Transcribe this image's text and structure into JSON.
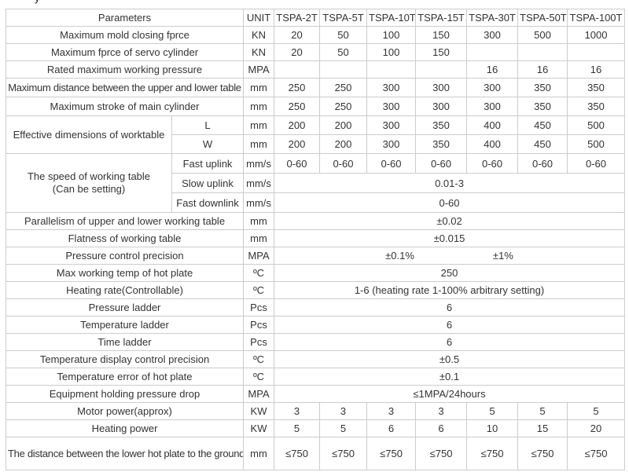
{
  "page": {
    "top_fragment_text": "y"
  },
  "colors": {
    "border": "#cccccc",
    "text": "#333333",
    "background": "#ffffff"
  },
  "table": {
    "header": [
      "Parameters",
      "UNIT",
      "TSPA-2T",
      "TSPA-5T",
      "TSPA-10T",
      "TSPA-15T",
      "TSPA-30T",
      "TSPA-50T",
      "TSPA-100T"
    ],
    "rows": {
      "mold_closing": {
        "label": "Maximum mold closing fprce",
        "unit": "KN",
        "values": [
          "20",
          "50",
          "100",
          "150",
          "300",
          "500",
          "1000"
        ]
      },
      "servo_cylinder": {
        "label": "Maximum fprce of servo cylinder",
        "unit": "KN",
        "values": [
          "20",
          "50",
          "100",
          "150",
          "",
          "",
          ""
        ]
      },
      "rated_pressure": {
        "label": "Rated maximum working pressure",
        "unit": "MPA",
        "values": [
          "",
          "",
          "",
          "",
          "16",
          "16",
          "16"
        ]
      },
      "max_distance": {
        "label": "Maximum distance between the upper and lower table",
        "unit": "mm",
        "values": [
          "250",
          "250",
          "300",
          "300",
          "300",
          "350",
          "350"
        ]
      },
      "max_stroke": {
        "label": "Maximum stroke of main cylinder",
        "unit": "mm",
        "values": [
          "250",
          "250",
          "300",
          "300",
          "300",
          "350",
          "350"
        ]
      },
      "worktable": {
        "label": "Effective dimensions of worktable",
        "L": {
          "sublabel": "L",
          "unit": "mm",
          "values": [
            "200",
            "200",
            "300",
            "350",
            "400",
            "450",
            "500"
          ]
        },
        "W": {
          "sublabel": "W",
          "unit": "mm",
          "values": [
            "200",
            "200",
            "300",
            "350",
            "400",
            "450",
            "500"
          ]
        }
      },
      "speed": {
        "label_line1": "The speed of working table",
        "label_line2": "(Can be setting)",
        "fast_uplink": {
          "sublabel": "Fast uplink",
          "unit": "mm/s",
          "values": [
            "0-60",
            "0-60",
            "0-60",
            "0-60",
            "0-60",
            "0-60",
            "0-60"
          ]
        },
        "slow_uplink": {
          "sublabel": "Slow uplink",
          "unit": "mm/s",
          "value": "0.01-3"
        },
        "fast_downlink": {
          "sublabel": "Fast downlink",
          "unit": "mm/s",
          "value": "0-60"
        }
      },
      "parallelism": {
        "label": "Parallelism of upper and lower working table",
        "unit": "mm",
        "value": "±0.02"
      },
      "flatness": {
        "label": "Flatness of working table",
        "unit": "mm",
        "value": "±0.015"
      },
      "pressure_precision": {
        "label": "Pressure control precision",
        "unit": "MPA",
        "value_left": "±0.1%",
        "value_right": "±1%"
      },
      "max_temp": {
        "label": "Max working temp of hot plate",
        "unit": "ºC",
        "value": "250"
      },
      "heating_rate": {
        "label": "Heating rate(Controllable)",
        "unit": "ºC",
        "value": "1-6 (heating rate 1-100% arbitrary setting)"
      },
      "pressure_ladder": {
        "label": "Pressure ladder",
        "unit": "Pcs",
        "value": "6"
      },
      "temperature_ladder": {
        "label": "Temperature ladder",
        "unit": "Pcs",
        "value": "6"
      },
      "time_ladder": {
        "label": "Time ladder",
        "unit": "Pcs",
        "value": "6"
      },
      "temp_display_precision": {
        "label": "Temperature display control precision",
        "unit": "ºC",
        "value": "±0.5"
      },
      "temp_error": {
        "label": "Temperature error of hot plate",
        "unit": "ºC",
        "value": "±0.1"
      },
      "holding_pressure_drop": {
        "label": "Equipment holding pressure drop",
        "unit": "MPA",
        "value": "≤1MPA/24hours"
      },
      "motor_power": {
        "label": "Motor power(approx)",
        "unit": "KW",
        "values": [
          "3",
          "3",
          "3",
          "3",
          "5",
          "5",
          "5"
        ]
      },
      "heating_power": {
        "label": "Heating power",
        "unit": "KW",
        "values": [
          "5",
          "5",
          "6",
          "6",
          "10",
          "15",
          "20"
        ]
      },
      "distance_to_ground": {
        "label": "The distance between the lower hot plate to the ground",
        "unit": "mm",
        "values": [
          "≤750",
          "≤750",
          "≤750",
          "≤750",
          "≤750",
          "≤750",
          "≤750"
        ]
      }
    }
  }
}
